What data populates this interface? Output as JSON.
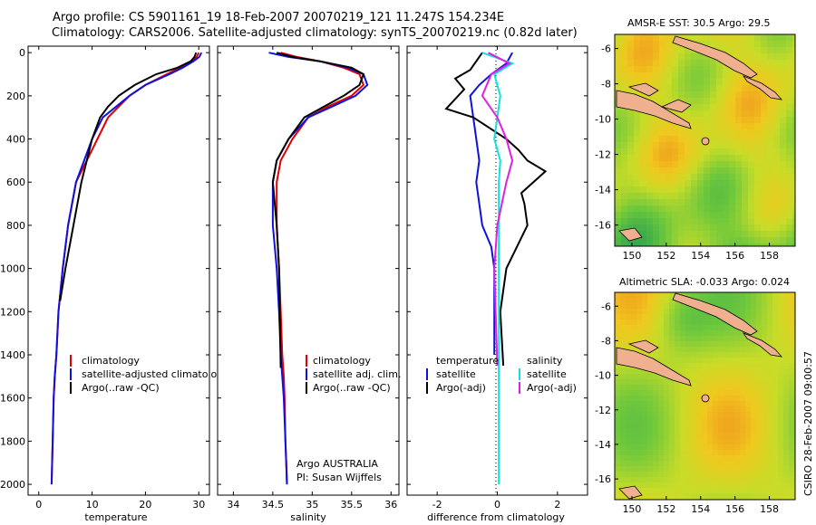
{
  "header": {
    "line1": "Argo profile: CS 5901161_19 18-Feb-2007 20070219_121 11.247S 154.234E",
    "line2": "Climatology: CARS2006. Satellite-adjusted climatology: synTS_20070219.nc (0.82d later)"
  },
  "colors": {
    "climatology": "#e00000",
    "satellite": "#1010e0",
    "argo": "#000000",
    "sal_diff": "#e020e0",
    "sal_sat": "#10e0e0"
  },
  "chart_data": [
    {
      "type": "line",
      "id": "temperature",
      "xlabel": "temperature",
      "ylabel": "",
      "xlim": [
        -2,
        32
      ],
      "ylim": [
        2050,
        -30
      ],
      "xticks": [
        0,
        10,
        20,
        30
      ],
      "yticks": [
        0,
        200,
        400,
        600,
        800,
        1000,
        1200,
        1400,
        1600,
        1800,
        2000
      ],
      "series": [
        {
          "name": "climatology",
          "color": "#e00000",
          "x": [
            30,
            29.6,
            28.5,
            26.5,
            24,
            20,
            17,
            15,
            13,
            11,
            9,
            7,
            5.5,
            4.5,
            3.7,
            3.3,
            3.0,
            2.8,
            2.6,
            2.5,
            2.4
          ],
          "y": [
            0,
            20,
            40,
            70,
            100,
            150,
            200,
            250,
            300,
            400,
            500,
            600,
            800,
            1000,
            1200,
            1400,
            1500,
            1600,
            1800,
            1900,
            2000
          ]
        },
        {
          "name": "satellite-adjusted climatology",
          "color": "#1010e0",
          "x": [
            30.5,
            30.1,
            29,
            27,
            24.5,
            20,
            17,
            14.5,
            12,
            10,
            8.5,
            7,
            5.5,
            4.5,
            3.7,
            3.3,
            3.0,
            2.8,
            2.6,
            2.5,
            2.4
          ],
          "y": [
            0,
            20,
            40,
            70,
            100,
            150,
            200,
            250,
            300,
            400,
            500,
            600,
            800,
            1000,
            1200,
            1400,
            1500,
            1600,
            1800,
            1900,
            2000
          ]
        },
        {
          "name": "Argo(..raw -QC)",
          "color": "#000000",
          "x": [
            29.5,
            29.2,
            28.5,
            26,
            22,
            18,
            15,
            13,
            11.5,
            10,
            9,
            8,
            6.5,
            5,
            4
          ],
          "y": [
            0,
            20,
            40,
            70,
            100,
            150,
            200,
            250,
            300,
            400,
            500,
            600,
            800,
            1000,
            1150
          ]
        }
      ],
      "legend": [
        "climatology",
        "satellite-adjusted climatology",
        "Argo(..raw -QC)"
      ]
    },
    {
      "type": "line",
      "id": "salinity",
      "xlabel": "salinity",
      "ylabel": "",
      "xlim": [
        33.8,
        36.1
      ],
      "ylim": [
        2050,
        -30
      ],
      "xticks": [
        34,
        34.5,
        35,
        35.5,
        36
      ],
      "yticks": [],
      "series": [
        {
          "name": "climatology",
          "color": "#e00000",
          "x": [
            34.6,
            34.8,
            35.1,
            35.4,
            35.6,
            35.65,
            35.5,
            35.2,
            34.95,
            34.75,
            34.6,
            34.55,
            34.55,
            34.58,
            34.6,
            34.62,
            34.64,
            34.65,
            34.66,
            34.67,
            34.68
          ],
          "y": [
            0,
            20,
            40,
            70,
            100,
            150,
            200,
            250,
            300,
            400,
            500,
            600,
            800,
            1000,
            1200,
            1400,
            1500,
            1600,
            1800,
            1900,
            2000
          ]
        },
        {
          "name": "satellite adj. clim.",
          "color": "#1010e0",
          "x": [
            34.45,
            34.7,
            35.1,
            35.45,
            35.65,
            35.7,
            35.55,
            35.25,
            34.95,
            34.7,
            34.55,
            34.5,
            34.5,
            34.55,
            34.58,
            34.6,
            34.62,
            34.64,
            34.66,
            34.67,
            34.68
          ],
          "y": [
            0,
            20,
            40,
            70,
            100,
            150,
            200,
            250,
            300,
            400,
            500,
            600,
            800,
            1000,
            1200,
            1400,
            1500,
            1600,
            1800,
            1900,
            2000
          ]
        },
        {
          "name": "Argo(..raw -QC)",
          "color": "#000000",
          "x": [
            34.55,
            34.75,
            35.1,
            35.5,
            35.65,
            35.6,
            35.4,
            35.15,
            34.9,
            34.7,
            34.55,
            34.5,
            34.55,
            34.58,
            34.6
          ],
          "y": [
            0,
            20,
            40,
            70,
            100,
            150,
            200,
            250,
            300,
            400,
            500,
            600,
            800,
            1000,
            1460
          ]
        }
      ],
      "legend": [
        "climatology",
        "satellite adj. clim.",
        "Argo(..raw -QC)"
      ],
      "annotations": [
        "Argo AUSTRALIA",
        "PI: Susan Wijffels"
      ]
    },
    {
      "type": "line",
      "id": "difference",
      "xlabel": "difference from climatology",
      "ylabel": "",
      "xlim": [
        -3,
        3
      ],
      "ylim": [
        2050,
        -30
      ],
      "xticks": [
        -2,
        0,
        2
      ],
      "yticks": [],
      "series": [
        {
          "name": "temperature satellite",
          "color": "#1010e0",
          "x": [
            0.5,
            0.3,
            -0.2,
            -0.6,
            -0.9,
            -0.8,
            -0.7,
            -0.6,
            -0.7,
            -0.6,
            -0.5,
            -0.2,
            -0.1,
            -0.1
          ],
          "y": [
            0,
            50,
            100,
            150,
            200,
            300,
            400,
            500,
            600,
            700,
            800,
            900,
            1000,
            1400
          ]
        },
        {
          "name": "temperature Argo(-adj)",
          "color": "#000000",
          "x": [
            -0.5,
            -0.9,
            -1.4,
            -1.1,
            -1.7,
            -0.8,
            0.3,
            0.7,
            1.0,
            1.6,
            0.8,
            0.9,
            1.0,
            0.3,
            0.1,
            0.2
          ],
          "y": [
            0,
            80,
            120,
            170,
            260,
            300,
            400,
            450,
            500,
            550,
            650,
            700,
            800,
            1000,
            1200,
            1450
          ]
        },
        {
          "name": "salinity satellite",
          "color": "#10e0e0",
          "x": [
            -0.5,
            0.5,
            -0.1,
            0.1,
            0.0,
            -0.1,
            0.1,
            0.05,
            0.05,
            0.05,
            0.05,
            0.05
          ],
          "y": [
            0,
            50,
            100,
            200,
            300,
            400,
            500,
            600,
            800,
            1200,
            1600,
            2000
          ]
        },
        {
          "name": "salinity Argo(-adj)",
          "color": "#e020e0",
          "x": [
            -0.3,
            0.4,
            -0.2,
            -0.5,
            0.0,
            0.3,
            0.5,
            0.3,
            0.0,
            -0.1,
            0.0
          ],
          "y": [
            0,
            50,
            100,
            200,
            300,
            400,
            500,
            600,
            800,
            1000,
            1450
          ]
        }
      ],
      "legend": {
        "temperature_header": "temperature",
        "salinity_header": "salinity",
        "t_sat": "satellite",
        "t_argo": "Argo(-adj)",
        "s_sat": "satellite",
        "s_argo": "Argo(-adj)"
      }
    }
  ],
  "maps": {
    "sst": {
      "title": "AMSR-E SST: 30.5  Argo: 29.5",
      "xticks": [
        "150",
        "152",
        "154",
        "156",
        "158"
      ],
      "yticks": [
        "-6",
        "-8",
        "-10",
        "-12",
        "-14",
        "-16"
      ]
    },
    "sla": {
      "title": "Altimetric SLA: -0.033  Argo: 0.024",
      "xticks": [
        "150",
        "152",
        "154",
        "156",
        "158"
      ],
      "yticks": [
        "-6",
        "-8",
        "-10",
        "-12",
        "-14",
        "-16"
      ]
    }
  },
  "footer": {
    "stamp": "CSIRO 28-Feb-2007 09:00:57"
  }
}
